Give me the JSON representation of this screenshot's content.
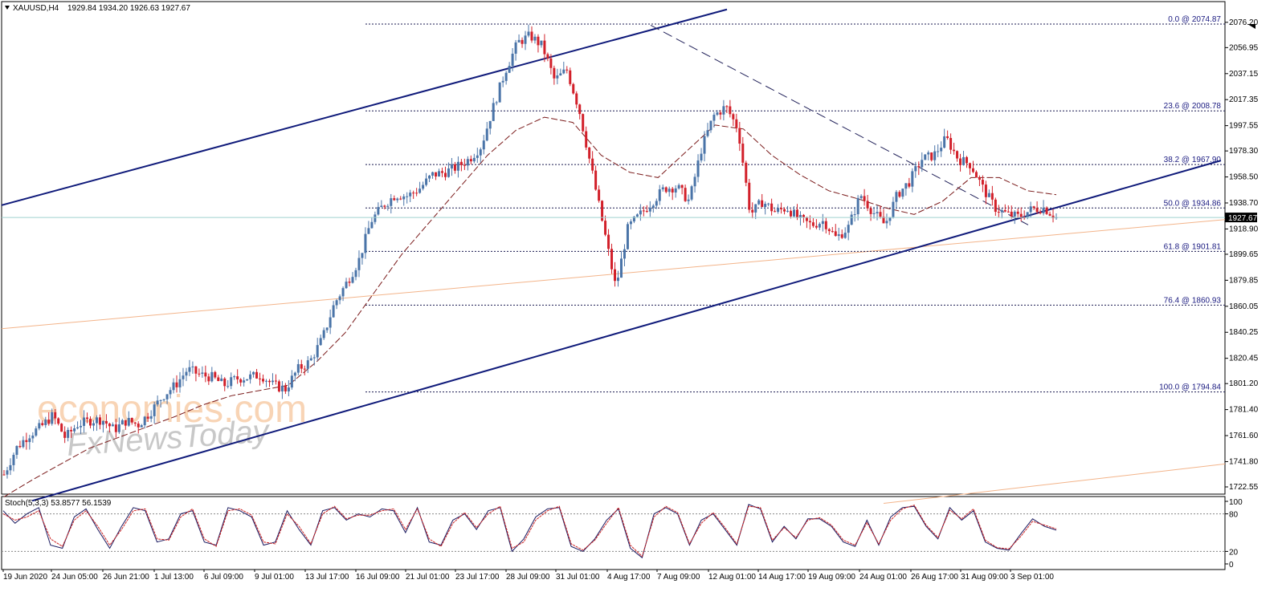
{
  "header": {
    "symbol": "XAUUSD,H4",
    "ohlc": "1929.84 1934.20 1926.63 1927.67"
  },
  "watermark": {
    "brand1": "economies.com",
    "brand2": "FxNewsToday"
  },
  "colors": {
    "bull": "#4a74a8",
    "bear": "#d2202a",
    "channel": "#0f1a7a",
    "fib": "#1a1a50",
    "ma": "#7a1a1a",
    "stoch_main": "#1a1a60",
    "stoch_signal": "#cc2222"
  },
  "chart_data": [
    {
      "type": "candlestick",
      "symbol": "XAUUSD",
      "timeframe": "H4",
      "current_price": "1927.67",
      "ylim": [
        1715,
        2086
      ],
      "y_ticks": [
        "2076.20",
        "2056.95",
        "2037.15",
        "2017.35",
        "1997.55",
        "1978.30",
        "1958.50",
        "1938.70",
        "1918.90",
        "1899.65",
        "1879.85",
        "1860.05",
        "1840.25",
        "1820.45",
        "1801.20",
        "1781.40",
        "1761.60",
        "1741.80",
        "1722.55"
      ],
      "x_labels": [
        "19 Jun 2020",
        "24 Jun 05:00",
        "26 Jun 21:00",
        "1 Jul 13:00",
        "6 Jul 09:00",
        "9 Jul 01:00",
        "13 Jul 17:00",
        "16 Jul 09:00",
        "21 Jul 01:00",
        "23 Jul 17:00",
        "28 Jul 09:00",
        "31 Jul 01:00",
        "4 Aug 17:00",
        "7 Aug 09:00",
        "12 Aug 01:00",
        "14 Aug 17:00",
        "19 Aug 09:00",
        "24 Aug 01:00",
        "26 Aug 17:00",
        "31 Aug 09:00",
        "3 Sep 01:00"
      ],
      "price_path": [
        1732,
        1752,
        1762,
        1768,
        1777,
        1760,
        1770,
        1773,
        1774,
        1766,
        1773,
        1770,
        1780,
        1792,
        1800,
        1812,
        1808,
        1806,
        1800,
        1805,
        1806,
        1808,
        1800,
        1797,
        1812,
        1818,
        1835,
        1862,
        1878,
        1895,
        1925,
        1937,
        1945,
        1944,
        1950,
        1960,
        1962,
        1966,
        1972,
        1982,
        2012,
        2040,
        2061,
        2066,
        2058,
        2032,
        2040,
        2010,
        1965,
        1920,
        1874,
        1920,
        1930,
        1940,
        1950,
        1951,
        1940,
        1980,
        2005,
        2012,
        1995,
        1930,
        1940,
        1932,
        1935,
        1926,
        1922,
        1925,
        1912,
        1920,
        1945,
        1932,
        1922,
        1945,
        1955,
        1972,
        1975,
        1988,
        1972,
        1968,
        1950,
        1935,
        1930,
        1928,
        1934,
        1935,
        1927.67
      ],
      "moving_average": [
        1715,
        1728,
        1740,
        1752,
        1760,
        1768,
        1776,
        1785,
        1792,
        1796,
        1800,
        1818,
        1840,
        1870,
        1900,
        1925,
        1950,
        1975,
        1994,
        2004,
        2000,
        1975,
        1962,
        1958,
        1978,
        1998,
        1995,
        1975,
        1960,
        1948,
        1942,
        1935,
        1930,
        1940,
        1958,
        1958,
        1948,
        1945
      ],
      "fibonacci_levels": [
        {
          "label": "0.0 @ 2074.87",
          "value": 2074.87
        },
        {
          "label": "23.6 @ 2008.78",
          "value": 2008.78
        },
        {
          "label": "38.2 @ 1967.90",
          "value": 1967.9
        },
        {
          "label": "50.0 @ 1934.86",
          "value": 1934.86
        },
        {
          "label": "61.8 @ 1901.81",
          "value": 1901.81
        },
        {
          "label": "76.4 @ 1860.93",
          "value": 1860.93
        },
        {
          "label": "100.0 @ 1794.84",
          "value": 1794.84
        }
      ]
    },
    {
      "type": "line",
      "title": "Stoch(5,3,3) 53.8577 56.1539",
      "ylim": [
        0,
        100
      ],
      "y_ticks": [
        "100",
        "80",
        "20",
        "0"
      ],
      "levels": [
        80,
        20
      ],
      "series": [
        {
          "values": [
            85,
            65,
            80,
            90,
            30,
            25,
            75,
            88,
            55,
            25,
            60,
            90,
            85,
            35,
            40,
            80,
            85,
            35,
            30,
            90,
            85,
            75,
            30,
            35,
            85,
            55,
            30,
            85,
            90,
            70,
            80,
            75,
            88,
            85,
            50,
            90,
            35,
            30,
            70,
            80,
            55,
            85,
            90,
            20,
            40,
            75,
            88,
            90,
            28,
            20,
            40,
            70,
            88,
            25,
            10,
            80,
            90,
            80,
            30,
            70,
            80,
            55,
            30,
            95,
            88,
            35,
            60,
            40,
            72,
            72,
            60,
            35,
            28,
            70,
            30,
            75,
            90,
            92,
            60,
            40,
            90,
            70,
            85,
            35,
            25,
            22,
            48,
            72,
            60,
            54
          ]
        },
        {
          "values": [
            80,
            70,
            75,
            85,
            40,
            28,
            70,
            85,
            60,
            30,
            55,
            85,
            88,
            40,
            38,
            75,
            88,
            40,
            28,
            85,
            88,
            78,
            35,
            32,
            80,
            60,
            32,
            80,
            92,
            72,
            78,
            78,
            85,
            88,
            55,
            88,
            40,
            28,
            65,
            82,
            58,
            80,
            92,
            25,
            35,
            70,
            85,
            92,
            32,
            22,
            38,
            65,
            90,
            30,
            12,
            75,
            92,
            82,
            32,
            65,
            82,
            58,
            32,
            92,
            90,
            38,
            58,
            42,
            70,
            74,
            62,
            38,
            30,
            66,
            32,
            70,
            88,
            94,
            62,
            42,
            86,
            72,
            88,
            38,
            26,
            24,
            44,
            68,
            62,
            56
          ]
        }
      ]
    }
  ]
}
